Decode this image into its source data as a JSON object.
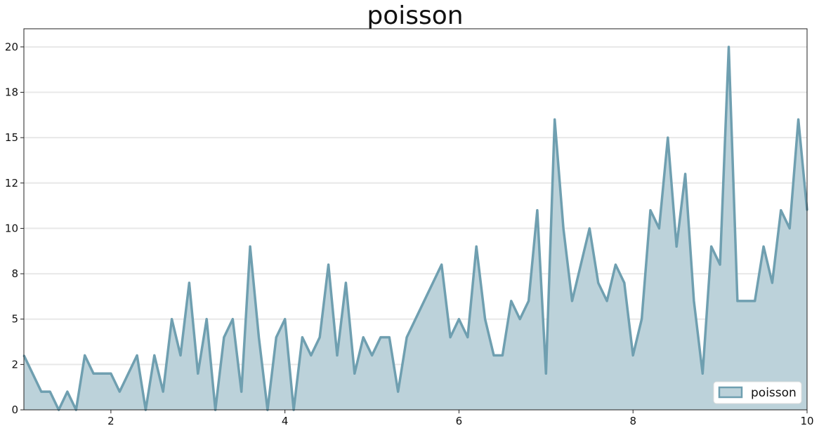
{
  "chart_data": {
    "type": "area",
    "title": "poisson",
    "xlabel": "",
    "ylabel": "",
    "xlim": [
      1,
      10
    ],
    "ylim": [
      0,
      21
    ],
    "x_ticks": [
      2,
      4,
      6,
      8,
      10
    ],
    "y_ticks": [
      0,
      2,
      5,
      8,
      10,
      12,
      15,
      18,
      20
    ],
    "y_tick_values": [
      0,
      2.5,
      5,
      7.5,
      10,
      12.5,
      15,
      17.5,
      20
    ],
    "grid": "horizontal",
    "legend": {
      "position": "bottom-right"
    },
    "series": [
      {
        "name": "poisson",
        "color": "#6f9fb0",
        "fill": "#bcd2da",
        "points": [
          [
            1.0,
            3
          ],
          [
            1.2,
            1
          ],
          [
            1.3,
            1
          ],
          [
            1.4,
            0
          ],
          [
            1.5,
            1
          ],
          [
            1.6,
            0
          ],
          [
            1.7,
            3
          ],
          [
            1.8,
            2
          ],
          [
            1.9,
            2
          ],
          [
            2.0,
            2
          ],
          [
            2.1,
            1
          ],
          [
            2.3,
            3
          ],
          [
            2.4,
            0
          ],
          [
            2.5,
            3
          ],
          [
            2.6,
            1
          ],
          [
            2.7,
            5
          ],
          [
            2.8,
            3
          ],
          [
            2.9,
            7
          ],
          [
            3.0,
            2
          ],
          [
            3.1,
            5
          ],
          [
            3.2,
            0
          ],
          [
            3.3,
            4
          ],
          [
            3.4,
            5
          ],
          [
            3.5,
            1
          ],
          [
            3.6,
            9
          ],
          [
            3.7,
            4
          ],
          [
            3.8,
            0
          ],
          [
            3.9,
            4
          ],
          [
            4.0,
            5
          ],
          [
            4.1,
            0
          ],
          [
            4.2,
            4
          ],
          [
            4.3,
            3
          ],
          [
            4.4,
            4
          ],
          [
            4.5,
            8
          ],
          [
            4.6,
            3
          ],
          [
            4.7,
            7
          ],
          [
            4.8,
            2
          ],
          [
            4.9,
            4
          ],
          [
            5.0,
            3
          ],
          [
            5.1,
            4
          ],
          [
            5.2,
            4
          ],
          [
            5.3,
            1
          ],
          [
            5.4,
            4
          ],
          [
            5.8,
            8
          ],
          [
            5.9,
            4
          ],
          [
            6.0,
            5
          ],
          [
            6.1,
            4
          ],
          [
            6.2,
            9
          ],
          [
            6.3,
            5
          ],
          [
            6.4,
            3
          ],
          [
            6.5,
            3
          ],
          [
            6.6,
            6
          ],
          [
            6.7,
            5
          ],
          [
            6.8,
            6
          ],
          [
            6.9,
            11
          ],
          [
            7.0,
            2
          ],
          [
            7.1,
            16
          ],
          [
            7.2,
            10
          ],
          [
            7.3,
            6
          ],
          [
            7.5,
            10
          ],
          [
            7.6,
            7
          ],
          [
            7.7,
            6
          ],
          [
            7.8,
            8
          ],
          [
            7.9,
            7
          ],
          [
            8.0,
            3
          ],
          [
            8.1,
            5
          ],
          [
            8.2,
            11
          ],
          [
            8.3,
            10
          ],
          [
            8.4,
            15
          ],
          [
            8.5,
            9
          ],
          [
            8.6,
            13
          ],
          [
            8.7,
            6
          ],
          [
            8.8,
            2
          ],
          [
            8.9,
            9
          ],
          [
            9.0,
            8
          ],
          [
            9.1,
            20
          ],
          [
            9.2,
            6
          ],
          [
            9.3,
            6
          ],
          [
            9.4,
            6
          ],
          [
            9.5,
            9
          ],
          [
            9.6,
            7
          ],
          [
            9.7,
            11
          ],
          [
            9.8,
            10
          ],
          [
            9.9,
            16
          ],
          [
            10.0,
            11
          ]
        ]
      }
    ]
  }
}
